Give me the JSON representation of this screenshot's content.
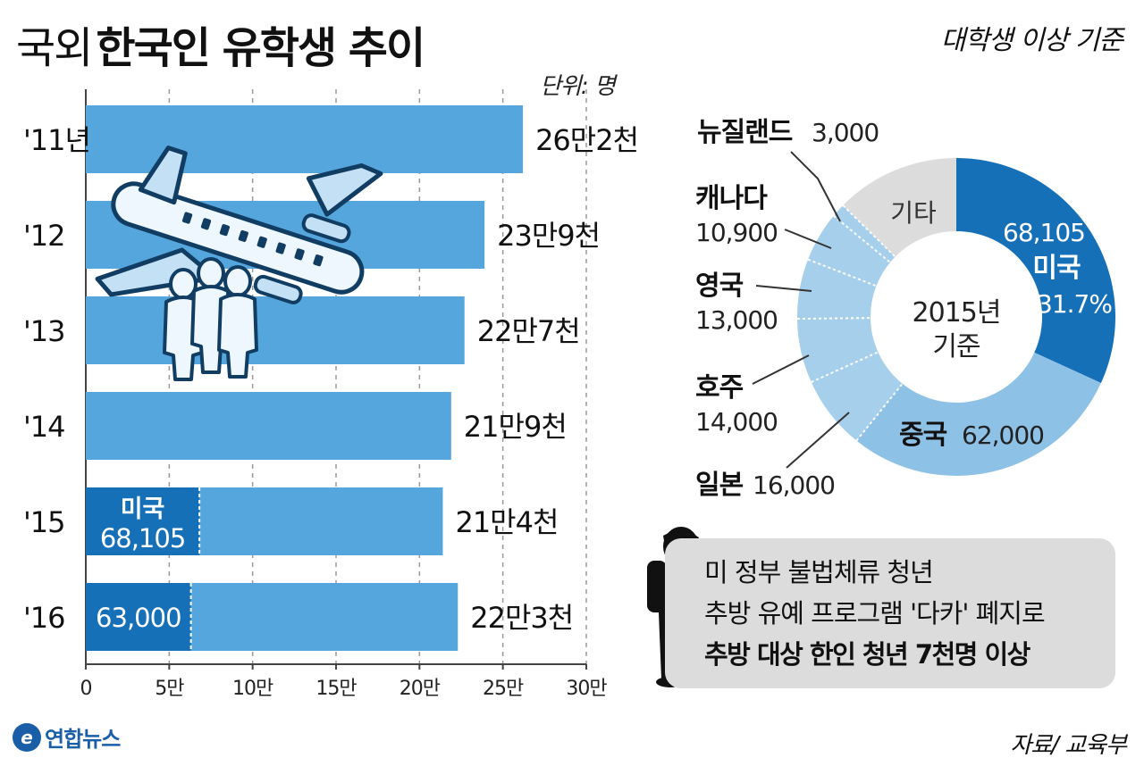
{
  "header": {
    "title_prefix": "국외",
    "title_main": "한국인 유학생 추이",
    "basis": "대학생 이상 기준",
    "unit": "단위: 명"
  },
  "chart_data": [
    {
      "type": "bar",
      "orientation": "horizontal",
      "categories": [
        "'11년",
        "'12",
        "'13",
        "'14",
        "'15",
        "'16"
      ],
      "values": [
        262000,
        239000,
        227000,
        219000,
        214000,
        223000
      ],
      "value_labels": [
        "26만2천",
        "23만9천",
        "22만7천",
        "21만9천",
        "21만4천",
        "22만3천"
      ],
      "us_segment": [
        {
          "category": "'15",
          "value": 68105,
          "label": "미국",
          "value_label": "68,105"
        },
        {
          "category": "'16",
          "value": 63000,
          "label": "",
          "value_label": "63,000"
        }
      ],
      "xlim": [
        0,
        300000
      ],
      "x_ticks": [
        0,
        50000,
        100000,
        150000,
        200000,
        250000,
        300000
      ],
      "x_tick_labels": [
        "0",
        "5만",
        "10만",
        "15만",
        "20만",
        "25만",
        "30만"
      ],
      "grid": true
    },
    {
      "type": "pie",
      "style": "donut",
      "center_label": [
        "2015년",
        "기준"
      ],
      "slices": [
        {
          "name": "미국",
          "value": 68105,
          "value_label": "68,105",
          "percent_label": "31.7%"
        },
        {
          "name": "중국",
          "value": 62000,
          "value_label": "62,000"
        },
        {
          "name": "일본",
          "value": 16000,
          "value_label": "16,000"
        },
        {
          "name": "호주",
          "value": 14000,
          "value_label": "14,000"
        },
        {
          "name": "영국",
          "value": 13000,
          "value_label": "13,000"
        },
        {
          "name": "캐나다",
          "value": 10900,
          "value_label": "10,900"
        },
        {
          "name": "뉴질랜드",
          "value": 3000,
          "value_label": "3,000"
        },
        {
          "name": "기타",
          "value": 27000,
          "value_label": ""
        }
      ]
    }
  ],
  "note": {
    "lines": [
      "미 정부 불법체류 청년",
      "추방 유예 프로그램 '다카' 폐지로",
      "추방 대상 한인 청년 7천명 이상"
    ]
  },
  "footer": {
    "logo_text": "연합뉴스",
    "source": "자료/ 교육부"
  },
  "colors": {
    "bar": "#55a6dd",
    "bar_highlight": "#1670b8",
    "donut_us": "#1670b8",
    "donut_china": "#8ec1e6",
    "donut_others": "#a6cfec",
    "donut_etc": "#dcdcdc",
    "note_bg": "#dcdcdc"
  },
  "icons": [
    "airplane-illustration",
    "people-silhouette-illustration",
    "student-silhouette-illustration",
    "yonhap-logo-icon"
  ]
}
